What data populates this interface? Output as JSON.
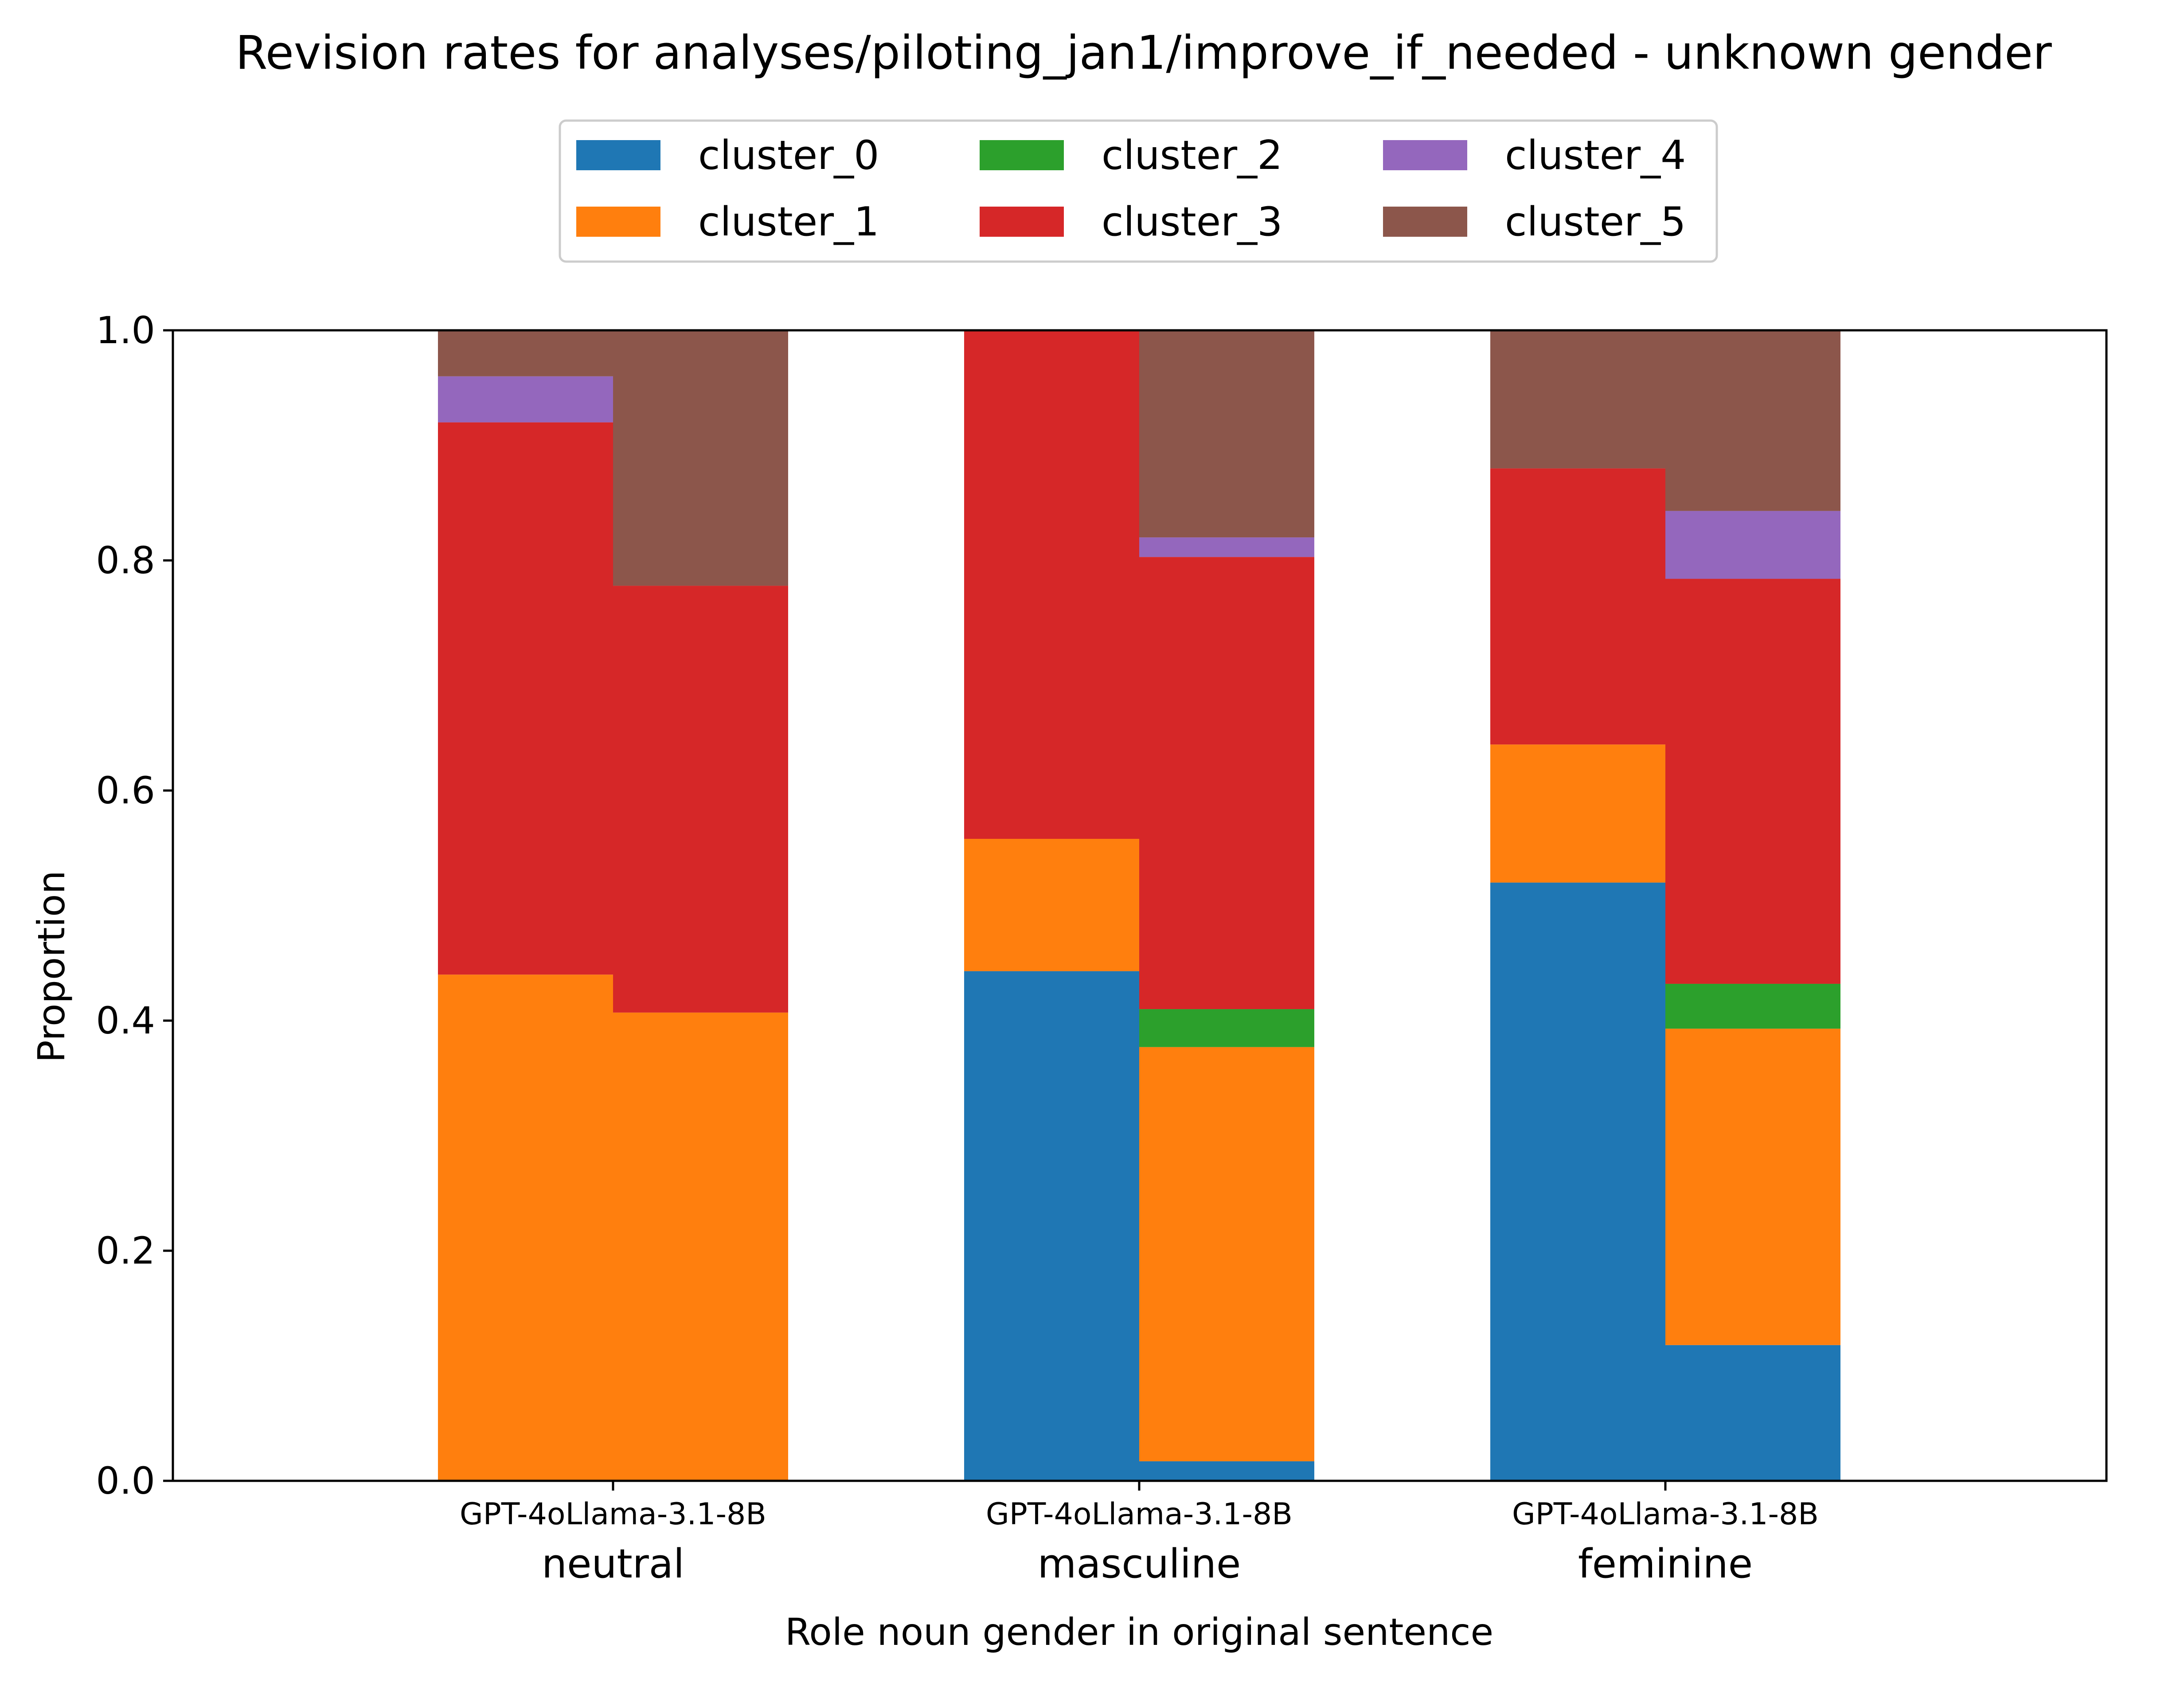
{
  "chart_data": {
    "type": "bar",
    "stacked": true,
    "title": "Revision rates for analyses/piloting_jan1/improve_if_needed - unknown gender",
    "xlabel": "Role noun gender in original sentence",
    "ylabel": "Proportion",
    "ylim": [
      0,
      1.0
    ],
    "yticks": [
      "0.0",
      "0.2",
      "0.4",
      "0.6",
      "0.8",
      "1.0"
    ],
    "grid": false,
    "legend_position": "top-center",
    "groups": [
      "neutral",
      "masculine",
      "feminine"
    ],
    "models": [
      "GPT-4o",
      "Llama-3.1-8B"
    ],
    "model_tick_labels": [
      "GPT-4oLlama-3.1-8B",
      "GPT-4oLlama-3.1-8B",
      "GPT-4oLlama-3.1-8B"
    ],
    "categories": [
      "neutral / GPT-4o",
      "neutral / Llama-3.1-8B",
      "masculine / GPT-4o",
      "masculine / Llama-3.1-8B",
      "feminine / GPT-4o",
      "feminine / Llama-3.1-8B"
    ],
    "series": [
      {
        "name": "cluster_0",
        "color": "#1f77b4",
        "values": [
          0.0,
          0.0,
          0.443,
          0.017,
          0.52,
          0.118
        ]
      },
      {
        "name": "cluster_1",
        "color": "#ff7f0e",
        "values": [
          0.44,
          0.407,
          0.115,
          0.36,
          0.12,
          0.275
        ]
      },
      {
        "name": "cluster_2",
        "color": "#2ca02c",
        "values": [
          0.0,
          0.0,
          0.0,
          0.033,
          0.0,
          0.039
        ]
      },
      {
        "name": "cluster_3",
        "color": "#d62728",
        "values": [
          0.48,
          0.371,
          0.442,
          0.393,
          0.24,
          0.352
        ]
      },
      {
        "name": "cluster_4",
        "color": "#9467bd",
        "values": [
          0.04,
          0.0,
          0.0,
          0.017,
          0.0,
          0.059
        ]
      },
      {
        "name": "cluster_5",
        "color": "#8c564b",
        "values": [
          0.04,
          0.222,
          0.0,
          0.18,
          0.12,
          0.157
        ]
      }
    ]
  }
}
